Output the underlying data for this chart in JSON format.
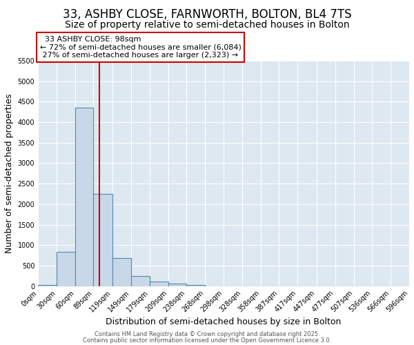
{
  "title": "33, ASHBY CLOSE, FARNWORTH, BOLTON, BL4 7TS",
  "subtitle": "Size of property relative to semi-detached houses in Bolton",
  "xlabel": "Distribution of semi-detached houses by size in Bolton",
  "ylabel": "Number of semi-detached properties",
  "footer1": "Contains HM Land Registry data © Crown copyright and database right 2025.",
  "footer2": "Contains public sector information licensed under the Open Government Licence 3.0.",
  "bin_edges": [
    0,
    30,
    60,
    89,
    119,
    149,
    179,
    209,
    238,
    268,
    298,
    328,
    358,
    387,
    417,
    447,
    477,
    507,
    536,
    566,
    596
  ],
  "bar_heights": [
    30,
    840,
    4350,
    2250,
    690,
    250,
    120,
    60,
    30,
    0,
    0,
    0,
    0,
    0,
    0,
    0,
    0,
    0,
    0,
    0
  ],
  "tick_labels": [
    "0sqm",
    "30sqm",
    "60sqm",
    "89sqm",
    "119sqm",
    "149sqm",
    "179sqm",
    "209sqm",
    "238sqm",
    "268sqm",
    "298sqm",
    "328sqm",
    "358sqm",
    "387sqm",
    "417sqm",
    "447sqm",
    "477sqm",
    "507sqm",
    "536sqm",
    "566sqm",
    "596sqm"
  ],
  "bar_color": "#c8d8e8",
  "bar_edge_color": "#5588aa",
  "property_size": 98,
  "property_label": "33 ASHBY CLOSE: 98sqm",
  "pct_smaller": 72,
  "n_smaller": 6084,
  "pct_larger": 27,
  "n_larger": 2323,
  "vline_color": "#cc0000",
  "annotation_box_color": "#cc0000",
  "ylim": [
    0,
    5500
  ],
  "yticks": [
    0,
    500,
    1000,
    1500,
    2000,
    2500,
    3000,
    3500,
    4000,
    4500,
    5000,
    5500
  ],
  "background_color": "#dde8f0",
  "grid_color": "#ffffff",
  "title_fontsize": 12,
  "subtitle_fontsize": 10,
  "axis_label_fontsize": 9,
  "tick_fontsize": 7,
  "footer_fontsize": 6,
  "ann_fontsize": 8
}
